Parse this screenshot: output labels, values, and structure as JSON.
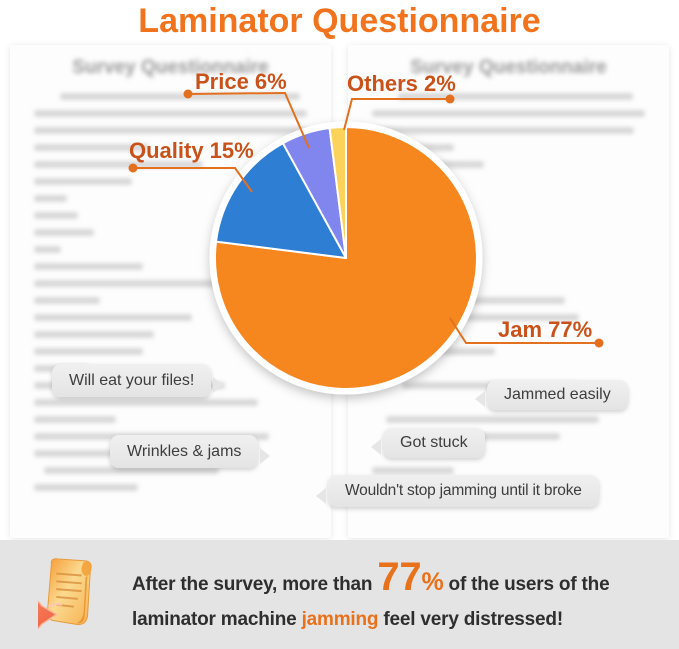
{
  "title": "Laminator Questionnaire",
  "documents": {
    "left_header": "Survey Questionnaire",
    "right_header": "Survey Questionnaire"
  },
  "chart_data": {
    "type": "pie",
    "title": "Laminator Questionnaire",
    "total": 100,
    "start_angle_deg": 0,
    "direction": "clockwise",
    "legend_position": "none",
    "slices": [
      {
        "name": "Jam",
        "value": 77,
        "label": "Jam 77%",
        "color": "#F6871F"
      },
      {
        "name": "Quality",
        "value": 15,
        "label": "Quality 15%",
        "color": "#2E7FD3"
      },
      {
        "name": "Price",
        "value": 6,
        "label": "Price 6%",
        "color": "#8186EE"
      },
      {
        "name": "Others",
        "value": 2,
        "label": "Others 2%",
        "color": "#FBD35B"
      }
    ],
    "label_color": "#C9521B",
    "leader_line_color": "#E2701E"
  },
  "quotes": [
    {
      "text": "Will eat your files!"
    },
    {
      "text": "Jammed easily"
    },
    {
      "text": "Wrinkles & jams"
    },
    {
      "text": "Got stuck"
    },
    {
      "text": "Wouldn't stop jamming until it broke"
    }
  ],
  "banner": {
    "line1_prefix": "After the survey, more than ",
    "big_number": "77",
    "percent_sign": "%",
    "line1_suffix": " of the users of the",
    "line2_prefix": "laminator machine ",
    "line2_highlight": "jamming",
    "line2_suffix": " feel very distressed!",
    "accent_color": "#E8711C"
  },
  "icons": {
    "banner_icon": "survey-scroll-icon"
  }
}
